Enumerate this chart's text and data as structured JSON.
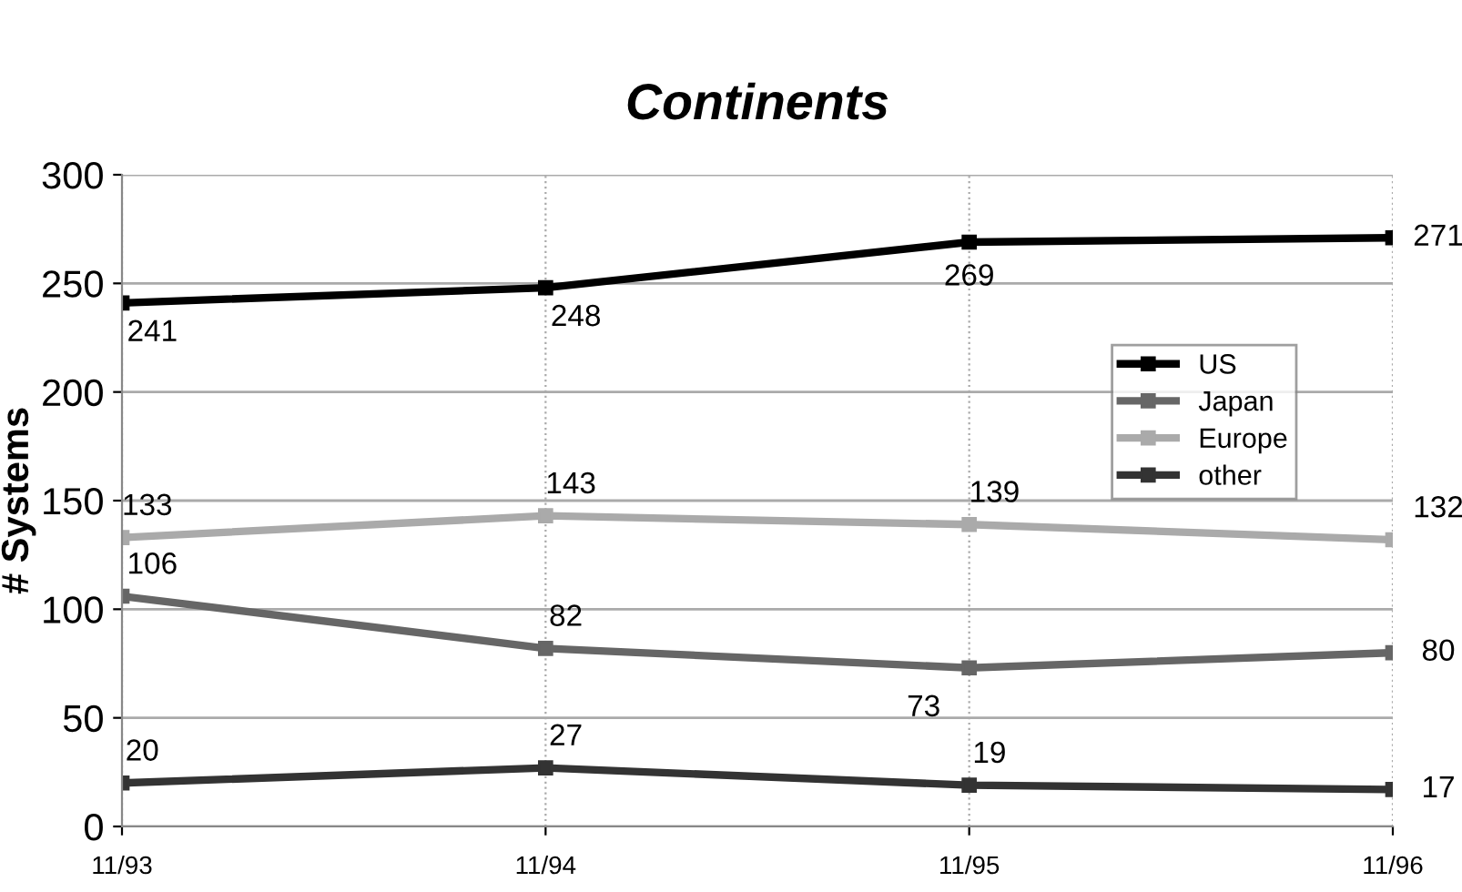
{
  "chart_data": {
    "type": "line",
    "title": "Continents",
    "ylabel": "# Systems",
    "categories": [
      "11/93",
      "11/94",
      "11/95",
      "11/96"
    ],
    "series": [
      {
        "name": "US",
        "color": "#000000",
        "values": [
          241,
          248,
          269,
          271
        ]
      },
      {
        "name": "Japan",
        "color": "#666666",
        "values": [
          106,
          82,
          73,
          80
        ]
      },
      {
        "name": "Europe",
        "color": "#aaaaaa",
        "values": [
          133,
          143,
          139,
          132
        ]
      },
      {
        "name": "other",
        "color": "#333333",
        "values": [
          20,
          27,
          19,
          17
        ]
      }
    ],
    "ylim": [
      0,
      300
    ],
    "yticks": [
      0,
      50,
      100,
      150,
      200,
      250,
      300
    ],
    "grid": true,
    "legend": "top right",
    "marker": "square",
    "line_style": "solid",
    "data_labels": true
  }
}
